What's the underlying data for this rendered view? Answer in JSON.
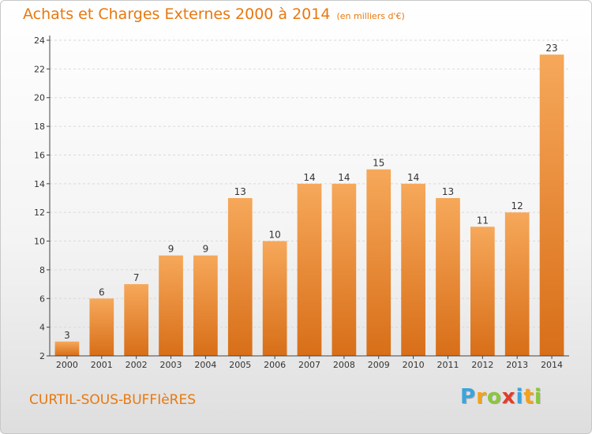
{
  "header": {
    "title": "Achats et Charges Externes 2000 à 2014",
    "unit": "(en milliers d'€)"
  },
  "footer": {
    "commune": "CURTIL-SOUS-BUFFIèRES",
    "logo_letters": [
      "P",
      "r",
      "o",
      "x",
      "i",
      "t",
      "i"
    ],
    "logo_colors": [
      "#3aa4dc",
      "#f2a21f",
      "#8cc63e",
      "#e23b2a",
      "#3aa4dc",
      "#f2a21f",
      "#8cc63e"
    ]
  },
  "colors": {
    "bar_top": "#f6a85a",
    "bar_bottom": "#d86e18",
    "title": "#e8780e",
    "grid": "#d9d9d9",
    "axis": "#444444"
  },
  "chart_data": {
    "type": "bar",
    "title": "Achats et Charges Externes 2000 à 2014",
    "subtitle": "(en milliers d'€)",
    "categories": [
      "2000",
      "2001",
      "2002",
      "2003",
      "2004",
      "2005",
      "2006",
      "2007",
      "2008",
      "2009",
      "2010",
      "2011",
      "2012",
      "2013",
      "2014"
    ],
    "values": [
      3,
      6,
      7,
      9,
      9,
      13,
      10,
      14,
      14,
      15,
      14,
      13,
      11,
      12,
      23
    ],
    "ylim": [
      2,
      24
    ],
    "yticks": [
      2,
      4,
      6,
      8,
      10,
      12,
      14,
      16,
      18,
      20,
      22,
      24
    ],
    "grid": true,
    "data_labels": true
  }
}
